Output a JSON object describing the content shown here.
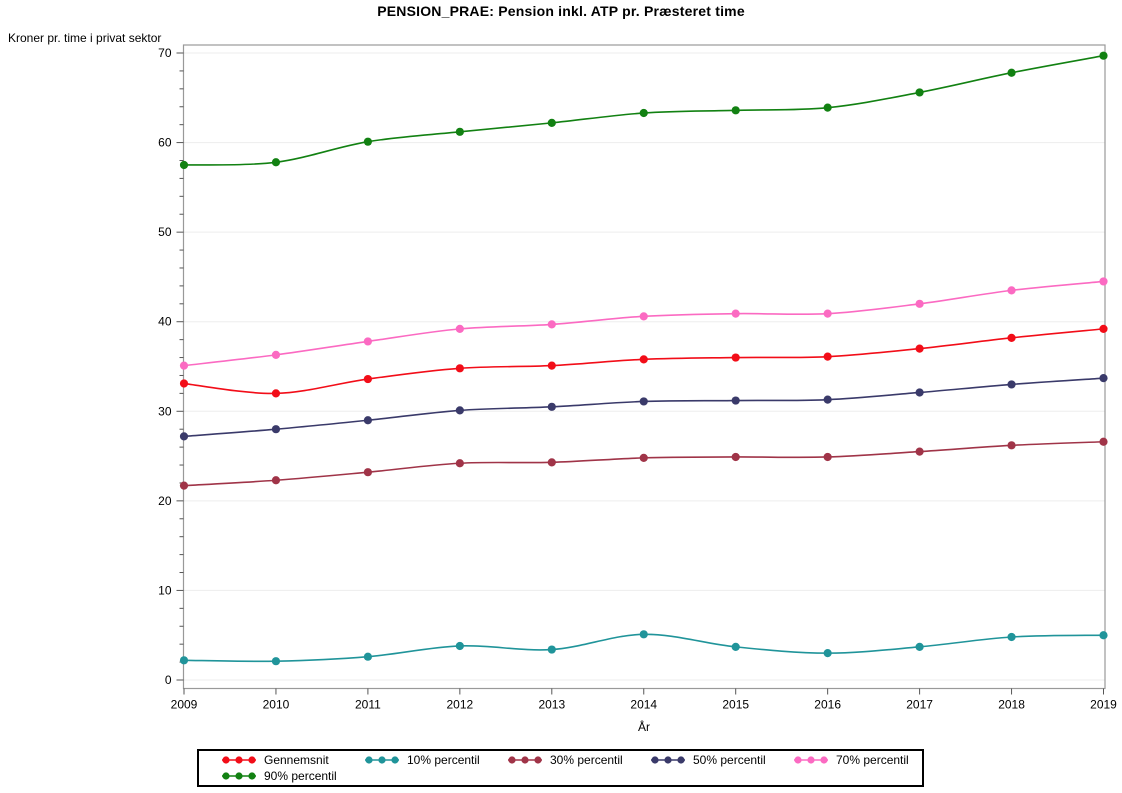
{
  "page": {
    "background": "#ffffff"
  },
  "chart_data": {
    "type": "line",
    "title": "PENSION_PRAE: Pension inkl. ATP pr. Præsteret time",
    "ylabel": "Kroner pr. time i privat sektor",
    "xlabel": "År",
    "x": [
      2009,
      2010,
      2011,
      2012,
      2013,
      2014,
      2015,
      2016,
      2017,
      2018,
      2019
    ],
    "ylim": [
      0,
      70
    ],
    "yticks": [
      0,
      10,
      20,
      30,
      40,
      50,
      60,
      70
    ],
    "ytick_minor_step": 2,
    "grid": "horizontal-major-only",
    "grid_color": "#ededed",
    "frame_color": "#999999",
    "tick_color": "#555555",
    "legend_position": "bottom-left-boxed",
    "series": [
      {
        "name": "Gennemsnit",
        "color": "#f20d18",
        "values": [
          33.1,
          32.0,
          33.6,
          34.8,
          35.1,
          35.8,
          36.0,
          36.1,
          37.0,
          38.2,
          39.2
        ]
      },
      {
        "name": "10% percentil",
        "color": "#20949a",
        "values": [
          2.2,
          2.1,
          2.6,
          3.8,
          3.4,
          5.1,
          3.7,
          3.0,
          3.7,
          4.8,
          5.0
        ]
      },
      {
        "name": "30% percentil",
        "color": "#a03448",
        "values": [
          21.7,
          22.3,
          23.2,
          24.2,
          24.3,
          24.8,
          24.9,
          24.9,
          25.5,
          26.2,
          26.6
        ]
      },
      {
        "name": "50% percentil",
        "color": "#3a3a6a",
        "values": [
          27.2,
          28.0,
          29.0,
          30.1,
          30.5,
          31.1,
          31.2,
          31.3,
          32.1,
          33.0,
          33.7
        ]
      },
      {
        "name": "70% percentil",
        "color": "#fb6ac2",
        "values": [
          35.1,
          36.3,
          37.8,
          39.2,
          39.7,
          40.6,
          40.9,
          40.9,
          42.0,
          43.5,
          44.5
        ]
      },
      {
        "name": "90% percentil",
        "color": "#128112",
        "values": [
          57.5,
          57.8,
          60.1,
          61.2,
          62.2,
          63.3,
          63.6,
          63.9,
          65.6,
          67.8,
          69.7
        ]
      }
    ]
  }
}
